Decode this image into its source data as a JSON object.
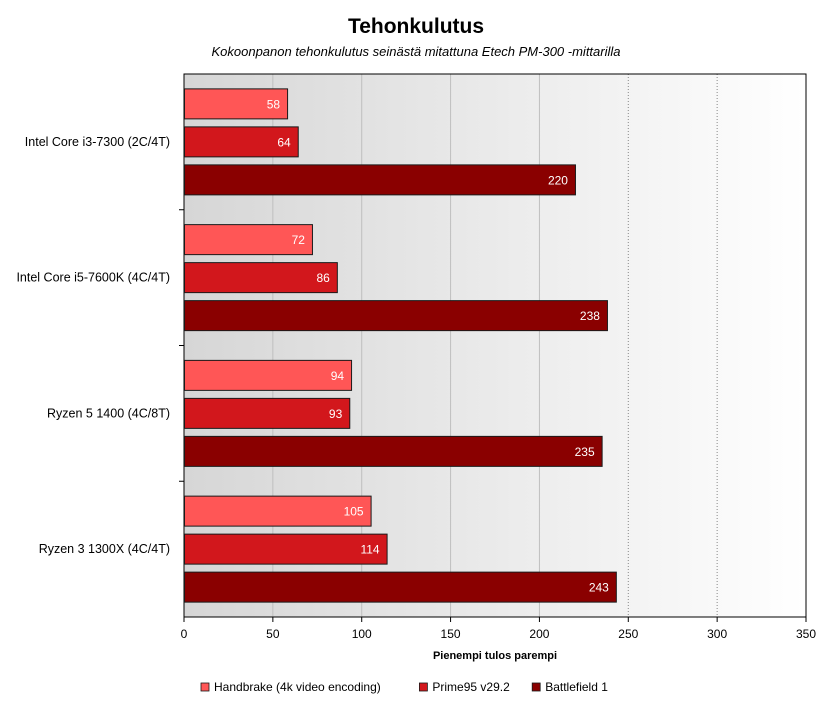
{
  "chart_data": {
    "type": "bar",
    "orientation": "horizontal",
    "title": "Tehonkulutus",
    "subtitle": "Kokoonpanon tehonkulutus seinästä mitattuna Etech PM-300 -mittarilla",
    "xlabel": "Pienempi tulos parempi",
    "ylabel": "",
    "xlim": [
      0,
      350
    ],
    "x_ticks": [
      0,
      50,
      100,
      150,
      200,
      250,
      300,
      350
    ],
    "grid": "vertical",
    "legend_position": "bottom",
    "categories": [
      "Intel Core i3-7300 (2C/4T)",
      "Intel Core i5-7600K (4C/4T)",
      "Ryzen 5 1400 (4C/8T)",
      "Ryzen 3 1300X (4C/4T)"
    ],
    "series": [
      {
        "name": "Handbrake (4k video encoding)",
        "color": "#ff5656",
        "values": [
          58,
          72,
          94,
          105
        ]
      },
      {
        "name": "Prime95 v29.2",
        "color": "#d2171c",
        "values": [
          64,
          86,
          93,
          114
        ]
      },
      {
        "name": "Battlefield 1",
        "color": "#8a0000",
        "values": [
          220,
          238,
          235,
          243
        ]
      }
    ]
  }
}
